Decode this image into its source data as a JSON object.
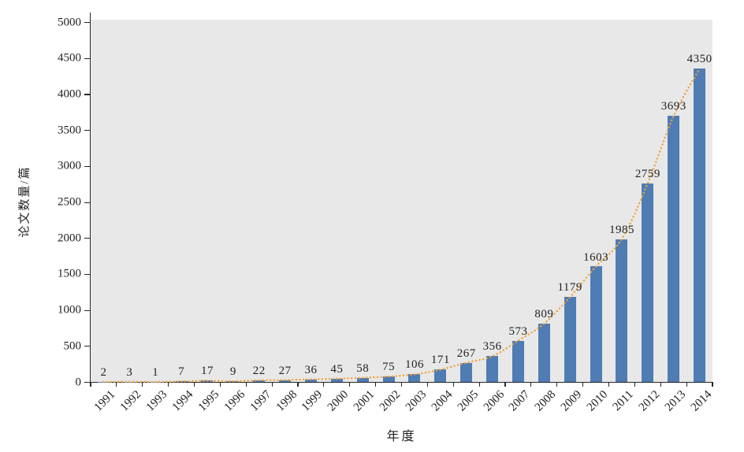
{
  "chart_data": {
    "type": "bar",
    "title": "",
    "categories": [
      "1991",
      "1992",
      "1993",
      "1994",
      "1995",
      "1996",
      "1997",
      "1998",
      "1999",
      "2000",
      "2001",
      "2002",
      "2003",
      "2004",
      "2005",
      "2006",
      "2007",
      "2008",
      "2009",
      "2010",
      "2011",
      "2012",
      "2013",
      "2014"
    ],
    "values": [
      2,
      3,
      1,
      7,
      17,
      9,
      22,
      27,
      36,
      45,
      58,
      75,
      106,
      171,
      267,
      356,
      573,
      809,
      1179,
      1603,
      1985,
      2759,
      3693,
      4350
    ],
    "data_labels": [
      "2",
      "3",
      "1",
      "7",
      "17",
      "9",
      "22",
      "27",
      "36",
      "45",
      "58",
      "75",
      "106",
      "171",
      "267",
      "356",
      "573",
      "809",
      "1179",
      "1603",
      "1985",
      "2759",
      "3693",
      "4350"
    ],
    "xlabel": "年度",
    "ylabel": "论文数量/篇",
    "ylim": [
      0,
      5000
    ],
    "y_ticks": [
      0,
      500,
      1000,
      1500,
      2000,
      2500,
      3000,
      3500,
      4000,
      4500,
      5000
    ],
    "grid": false,
    "legend": "none",
    "series": [
      {
        "name": "bars",
        "type": "bar",
        "color": "#4e7cb3"
      },
      {
        "name": "trend",
        "type": "dotted-smooth-line",
        "color": "#f0a23c"
      }
    ],
    "plot_background": "#e8e8e8",
    "axis_color": "#262626",
    "text_color": "#1f1f1f"
  }
}
